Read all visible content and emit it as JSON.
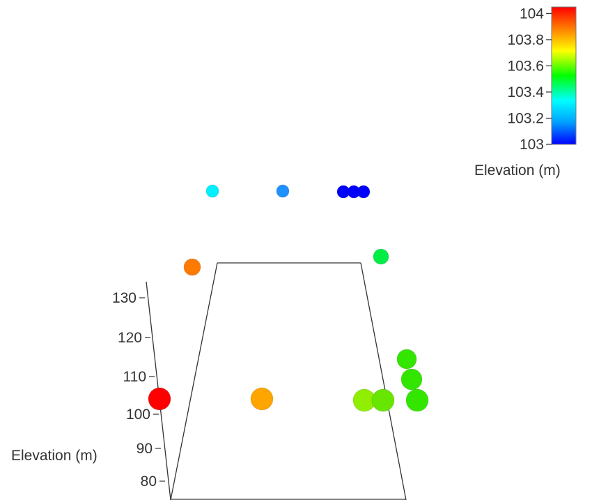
{
  "chart_data": {
    "type": "scatter",
    "projection": "3d",
    "axis": {
      "title": "Elevation (m)",
      "ticks": [
        "80",
        "90",
        "100",
        "110",
        "120",
        "130"
      ]
    },
    "colorbar": {
      "title": "Elevation (m)",
      "ticks": [
        "103",
        "103.2",
        "103.4",
        "103.6",
        "103.8",
        "104"
      ],
      "range": [
        103,
        104.05
      ],
      "colors": [
        "#0000ff",
        "#00a0ff",
        "#00ffff",
        "#00ff00",
        "#ffff00",
        "#ff8000",
        "#ff0000"
      ]
    },
    "points": [
      {
        "elevation": 104.0,
        "color": "#ff0000"
      },
      {
        "elevation": 103.9,
        "color": "#ffa500"
      },
      {
        "elevation": 103.7,
        "color": "#90ee00"
      },
      {
        "elevation": 103.65,
        "color": "#66e600"
      },
      {
        "elevation": 103.6,
        "color": "#33e600"
      },
      {
        "elevation": 103.6,
        "color": "#33e600"
      },
      {
        "elevation": 103.6,
        "color": "#33e600"
      },
      {
        "elevation": 103.95,
        "color": "#ff7a00"
      },
      {
        "elevation": 103.55,
        "color": "#00ee44"
      },
      {
        "elevation": 103.3,
        "color": "#00f0ff"
      },
      {
        "elevation": 103.15,
        "color": "#1e90ff"
      },
      {
        "elevation": 103.0,
        "color": "#0000ff"
      },
      {
        "elevation": 103.0,
        "color": "#0000ff"
      },
      {
        "elevation": 103.0,
        "color": "#0000ff"
      }
    ]
  }
}
